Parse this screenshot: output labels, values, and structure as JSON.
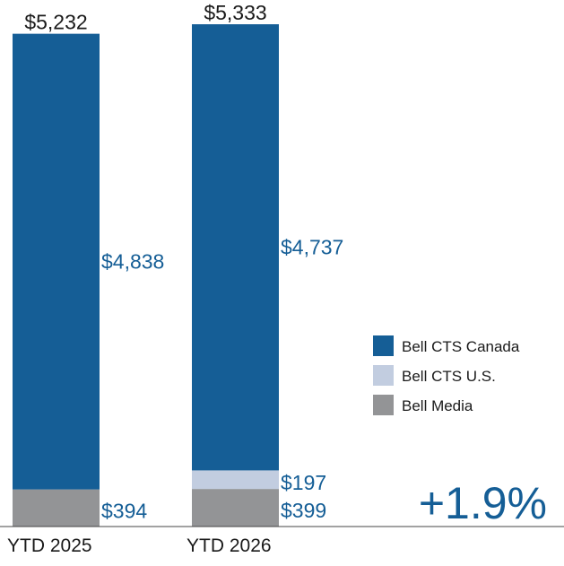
{
  "chart_data": {
    "type": "bar",
    "stacked": true,
    "categories": [
      "YTD 2025",
      "YTD 2026"
    ],
    "series": [
      {
        "name": "Bell Media",
        "color": "#939496",
        "values": [
          394,
          399
        ],
        "labels": [
          "$394",
          "$399"
        ]
      },
      {
        "name": "Bell CTS U.S.",
        "color": "#c2cde0",
        "values": [
          0,
          197
        ],
        "labels": [
          "",
          "$197"
        ]
      },
      {
        "name": "Bell CTS Canada",
        "color": "#155e96",
        "values": [
          4838,
          4737
        ],
        "labels": [
          "$4,838",
          "$4,737"
        ]
      }
    ],
    "totals": [
      "$5,232",
      "$5,333"
    ],
    "legend": {
      "position": "right",
      "items": [
        {
          "name": "Bell CTS Canada",
          "color": "#155e96"
        },
        {
          "name": "Bell CTS U.S.",
          "color": "#c2cde0"
        },
        {
          "name": "Bell Media",
          "color": "#939496"
        }
      ]
    },
    "annotation": "+1.9%",
    "ylim": [
      0,
      5400
    ],
    "grid": false,
    "title": "",
    "xlabel": "",
    "ylabel": ""
  }
}
